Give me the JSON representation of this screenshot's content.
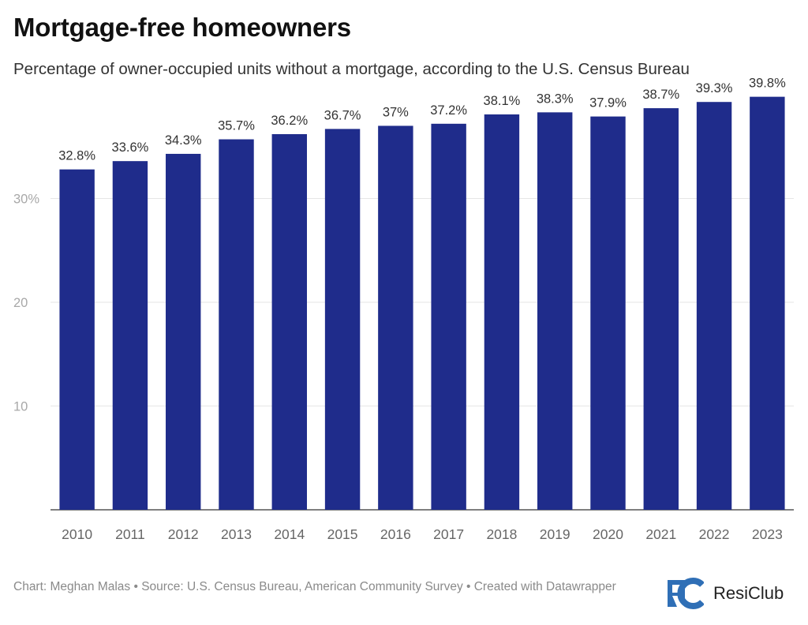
{
  "header": {
    "title": "Mortgage-free homeowners",
    "subtitle": "Percentage of owner-occupied units without a mortgage, according to the U.S. Census Bureau"
  },
  "chart_data": {
    "type": "bar",
    "title": "Mortgage-free homeowners",
    "subtitle": "Percentage of owner-occupied units without a mortgage, according to the U.S. Census Bureau",
    "categories": [
      "2010",
      "2011",
      "2012",
      "2013",
      "2014",
      "2015",
      "2016",
      "2017",
      "2018",
      "2019",
      "2020",
      "2021",
      "2022",
      "2023"
    ],
    "values": [
      32.8,
      33.6,
      34.3,
      35.7,
      36.2,
      36.7,
      37.0,
      37.2,
      38.1,
      38.3,
      37.9,
      38.7,
      39.3,
      39.8
    ],
    "value_labels": [
      "32.8%",
      "33.6%",
      "34.3%",
      "35.7%",
      "36.2%",
      "36.7%",
      "37%",
      "37.2%",
      "38.1%",
      "38.3%",
      "37.9%",
      "38.7%",
      "39.3%",
      "39.8%"
    ],
    "yticks": [
      10,
      20,
      30
    ],
    "ytick_labels": [
      "10",
      "20",
      "30%"
    ],
    "ylim": [
      0,
      40
    ],
    "xlabel": "",
    "ylabel": "",
    "grid": true,
    "bar_color": "#1f2c8b"
  },
  "footer": {
    "credit": "Chart: Meghan Malas • Source: U.S. Census Bureau, American Community Survey • Created with Datawrapper"
  },
  "logo": {
    "mark": "RC",
    "name": "ResiClub",
    "color": "#2f6fb6"
  }
}
